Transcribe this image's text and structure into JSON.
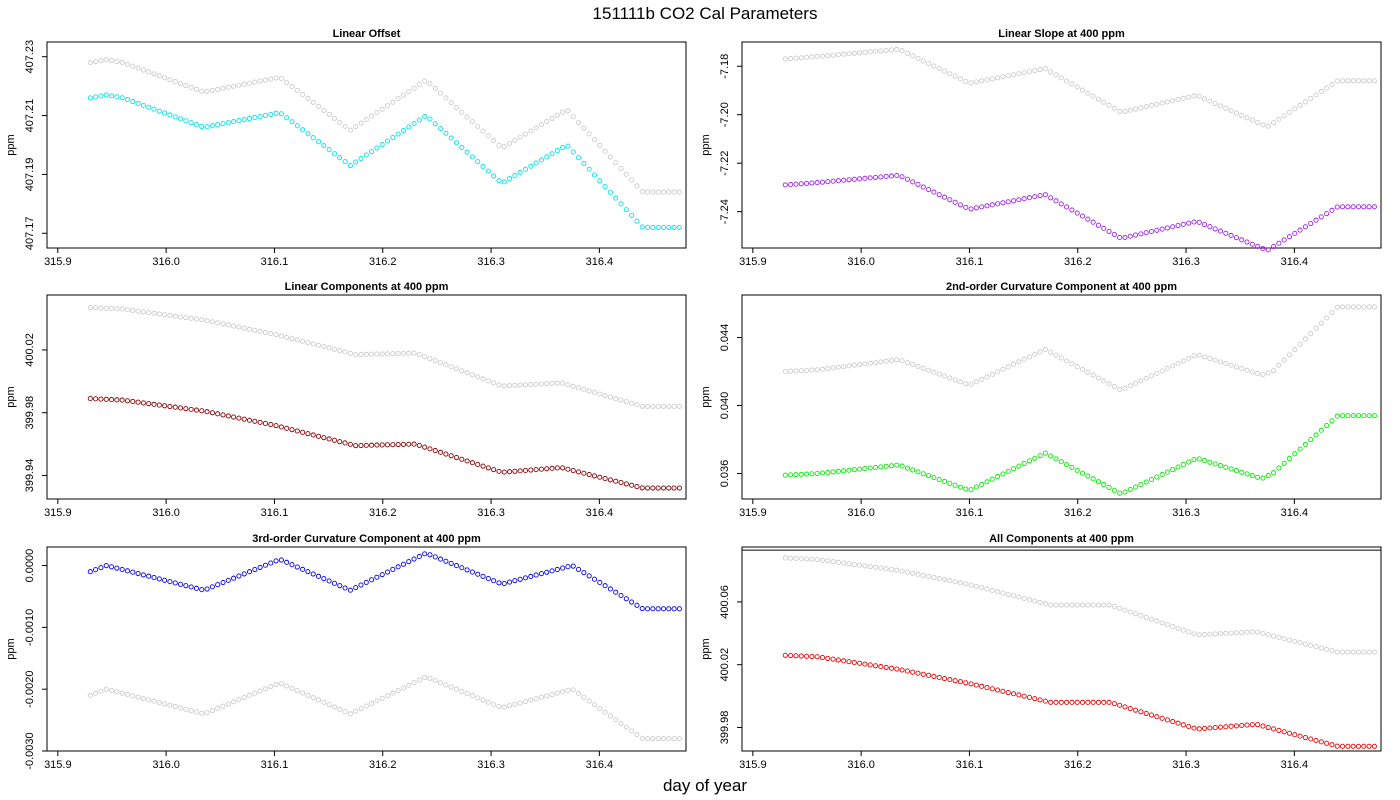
{
  "figure": {
    "title": "151111b   CO2 Cal Parameters",
    "xlabel": "day of year"
  },
  "chart_data": [
    {
      "type": "scatter",
      "title": "Linear Offset",
      "xlabel": "",
      "ylabel": "ppm",
      "xlim": [
        315.89,
        316.48
      ],
      "ylim": [
        407.165,
        407.235
      ],
      "xticks": [
        315.9,
        316.0,
        316.1,
        316.2,
        316.3,
        316.4
      ],
      "xtick_labels": [
        "315.9",
        "316.0",
        "316.1",
        "316.2",
        "316.3",
        "316.4"
      ],
      "yticks": [
        407.17,
        407.19,
        407.21,
        407.23
      ],
      "ytick_labels": [
        "407.17",
        "407.19",
        "407.21",
        "407.23"
      ],
      "series": [
        {
          "color": "#cccccc",
          "knots_x": [
            315.93,
            315.945,
            315.96,
            316.035,
            316.105,
            316.17,
            316.24,
            316.31,
            316.37,
            316.44,
            316.475
          ],
          "knots_y": [
            407.228,
            407.229,
            407.228,
            407.218,
            407.223,
            407.205,
            407.222,
            407.199,
            407.212,
            407.184,
            407.184
          ]
        },
        {
          "color": "#00e5ee",
          "knots_x": [
            315.93,
            315.945,
            315.96,
            316.035,
            316.105,
            316.17,
            316.24,
            316.31,
            316.37,
            316.44,
            316.475
          ],
          "knots_y": [
            407.216,
            407.217,
            407.216,
            407.206,
            407.211,
            407.193,
            407.21,
            407.187,
            407.2,
            407.172,
            407.172
          ]
        }
      ]
    },
    {
      "type": "scatter",
      "title": "Linear Slope at 400 ppm",
      "xlabel": "",
      "ylabel": "ppm",
      "xlim": [
        315.89,
        316.48
      ],
      "ylim": [
        -7.255,
        -7.17
      ],
      "xticks": [
        315.9,
        316.0,
        316.1,
        316.2,
        316.3,
        316.4
      ],
      "xtick_labels": [
        "315.9",
        "316.0",
        "316.1",
        "316.2",
        "316.3",
        "316.4"
      ],
      "yticks": [
        -7.24,
        -7.22,
        -7.2,
        -7.18
      ],
      "ytick_labels": [
        "-7.24",
        "-7.22",
        "-7.20",
        "-7.18"
      ],
      "series": [
        {
          "color": "#cccccc",
          "knots_x": [
            315.93,
            315.96,
            316.035,
            316.1,
            316.17,
            316.24,
            316.31,
            316.375,
            316.44,
            316.475
          ],
          "knots_y": [
            -7.177,
            -7.176,
            -7.173,
            -7.187,
            -7.181,
            -7.199,
            -7.192,
            -7.205,
            -7.186,
            -7.186
          ]
        },
        {
          "color": "#a020f0",
          "knots_x": [
            315.93,
            315.96,
            316.035,
            316.1,
            316.17,
            316.24,
            316.31,
            316.375,
            316.44,
            316.475
          ],
          "knots_y": [
            -7.229,
            -7.228,
            -7.225,
            -7.239,
            -7.233,
            -7.251,
            -7.244,
            -7.256,
            -7.238,
            -7.238
          ]
        }
      ]
    },
    {
      "type": "scatter",
      "title": "Linear Components at 400 ppm",
      "xlabel": "",
      "ylabel": "ppm",
      "xlim": [
        315.89,
        316.48
      ],
      "ylim": [
        399.925,
        400.055
      ],
      "xticks": [
        315.9,
        316.0,
        316.1,
        316.2,
        316.3,
        316.4
      ],
      "xtick_labels": [
        "315.9",
        "316.0",
        "316.1",
        "316.2",
        "316.3",
        "316.4"
      ],
      "yticks": [
        399.94,
        399.98,
        400.02
      ],
      "ytick_labels": [
        "399.94",
        "399.98",
        "400.02"
      ],
      "series": [
        {
          "color": "#cccccc",
          "knots_x": [
            315.93,
            315.96,
            316.035,
            316.1,
            316.175,
            316.23,
            316.31,
            316.365,
            316.44,
            316.475
          ],
          "knots_y": [
            400.047,
            400.046,
            400.039,
            400.03,
            400.017,
            400.018,
            399.997,
            399.999,
            399.984,
            399.984
          ]
        },
        {
          "color": "#8b0000",
          "knots_x": [
            315.93,
            315.96,
            316.035,
            316.1,
            316.175,
            316.23,
            316.31,
            316.365,
            316.44,
            316.475
          ],
          "knots_y": [
            399.989,
            399.988,
            399.981,
            399.972,
            399.959,
            399.96,
            399.942,
            399.945,
            399.932,
            399.932
          ]
        }
      ]
    },
    {
      "type": "scatter",
      "title": "2nd-order Curvature Component at 400 ppm",
      "xlabel": "",
      "ylabel": "ppm",
      "xlim": [
        315.89,
        316.48
      ],
      "ylim": [
        0.0345,
        0.0465
      ],
      "xticks": [
        315.9,
        316.0,
        316.1,
        316.2,
        316.3,
        316.4
      ],
      "xtick_labels": [
        "315.9",
        "316.0",
        "316.1",
        "316.2",
        "316.3",
        "316.4"
      ],
      "yticks": [
        0.036,
        0.04,
        0.044
      ],
      "ytick_labels": [
        "0.036",
        "0.040",
        "0.044"
      ],
      "series": [
        {
          "color": "#cccccc",
          "knots_x": [
            315.93,
            315.96,
            316.035,
            316.1,
            316.17,
            316.24,
            316.31,
            316.37,
            316.38,
            316.44,
            316.475
          ],
          "knots_y": [
            0.042,
            0.0421,
            0.0427,
            0.0412,
            0.0433,
            0.0409,
            0.043,
            0.0418,
            0.042,
            0.0458,
            0.0458
          ]
        },
        {
          "color": "#00ee00",
          "knots_x": [
            315.93,
            315.96,
            316.035,
            316.1,
            316.17,
            316.24,
            316.31,
            316.37,
            316.38,
            316.44,
            316.475
          ],
          "knots_y": [
            0.0359,
            0.036,
            0.0365,
            0.035,
            0.0372,
            0.0348,
            0.0369,
            0.0357,
            0.036,
            0.0394,
            0.0394
          ]
        }
      ]
    },
    {
      "type": "scatter",
      "title": "3rd-order Curvature Component at 400 ppm",
      "xlabel": "",
      "ylabel": "ppm",
      "xlim": [
        315.89,
        316.48
      ],
      "ylim": [
        -0.003,
        0.0003
      ],
      "xticks": [
        315.9,
        316.0,
        316.1,
        316.2,
        316.3,
        316.4
      ],
      "xtick_labels": [
        "315.9",
        "316.0",
        "316.1",
        "316.2",
        "316.3",
        "316.4"
      ],
      "yticks": [
        -0.003,
        -0.002,
        -0.001,
        0.0
      ],
      "ytick_labels": [
        "-0.0030",
        "-0.0020",
        "-0.0010",
        "0.0000"
      ],
      "series": [
        {
          "color": "#0000ee",
          "knots_x": [
            315.93,
            315.945,
            316.035,
            316.105,
            316.17,
            316.24,
            316.31,
            316.375,
            316.44,
            316.475
          ],
          "knots_y": [
            -0.0001,
            0.0,
            -0.0004,
            0.0001,
            -0.0004,
            0.0002,
            -0.0003,
            0.0,
            -0.0007,
            -0.0007
          ]
        },
        {
          "color": "#cccccc",
          "knots_x": [
            315.93,
            315.945,
            316.035,
            316.105,
            316.17,
            316.24,
            316.31,
            316.375,
            316.44,
            316.475
          ],
          "knots_y": [
            -0.0021,
            -0.002,
            -0.0024,
            -0.0019,
            -0.0024,
            -0.0018,
            -0.0023,
            -0.002,
            -0.0028,
            -0.0028
          ]
        }
      ]
    },
    {
      "type": "scatter",
      "title": "All Components at 400 ppm",
      "xlabel": "",
      "ylabel": "ppm",
      "xlim": [
        315.89,
        316.48
      ],
      "ylim": [
        399.965,
        400.095
      ],
      "xticks": [
        315.9,
        316.0,
        316.1,
        316.2,
        316.3,
        316.4
      ],
      "xtick_labels": [
        "315.9",
        "316.0",
        "316.1",
        "316.2",
        "316.3",
        "316.4"
      ],
      "yticks": [
        399.98,
        400.02,
        400.06
      ],
      "ytick_labels": [
        "399.98",
        "400.02",
        "400.06"
      ],
      "hline": 400.093,
      "series": [
        {
          "color": "#cccccc",
          "knots_x": [
            315.93,
            315.96,
            316.035,
            316.1,
            316.175,
            316.23,
            316.31,
            316.365,
            316.44,
            316.475
          ],
          "knots_y": [
            400.088,
            400.087,
            400.08,
            400.071,
            400.058,
            400.058,
            400.039,
            400.041,
            400.028,
            400.028
          ]
        },
        {
          "color": "#ee0000",
          "knots_x": [
            315.93,
            315.96,
            316.035,
            316.1,
            316.175,
            316.23,
            316.31,
            316.365,
            316.44,
            316.475
          ],
          "knots_y": [
            400.026,
            400.025,
            400.017,
            400.008,
            399.996,
            399.996,
            399.979,
            399.982,
            399.968,
            399.968
          ]
        }
      ]
    }
  ]
}
